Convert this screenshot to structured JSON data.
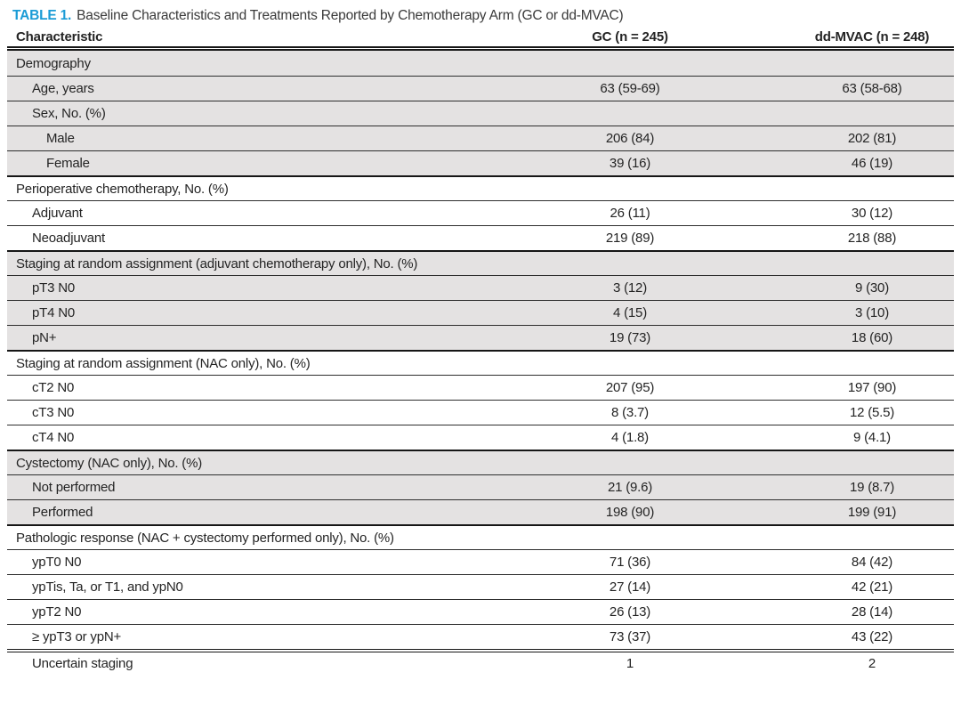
{
  "title": {
    "table_number": "TABLE 1.",
    "text": "Baseline Characteristics and Treatments Reported by Chemotherapy Arm (GC or dd-MVAC)"
  },
  "columns": {
    "characteristic": "Characteristic",
    "gc": "GC (n = 245)",
    "ddmvac": "dd-MVAC (n = 248)"
  },
  "colors": {
    "accent": "#1b9cd6",
    "shaded_row": "#e4e2e2",
    "rule": "#161616",
    "text": "#242424"
  },
  "rows": [
    {
      "label": "Demography",
      "indent": 0,
      "gc": "",
      "ddmvac": "",
      "shaded": true,
      "sep": "none"
    },
    {
      "label": "Age, years",
      "indent": 1,
      "gc": "63 (59-69)",
      "ddmvac": "63 (58-68)",
      "shaded": true,
      "sep": "row"
    },
    {
      "label": "Sex, No. (%)",
      "indent": 1,
      "gc": "",
      "ddmvac": "",
      "shaded": true,
      "sep": "row"
    },
    {
      "label": "Male",
      "indent": 2,
      "gc": "206 (84)",
      "ddmvac": "202 (81)",
      "shaded": true,
      "sep": "row"
    },
    {
      "label": "Female",
      "indent": 2,
      "gc": "39 (16)",
      "ddmvac": "46 (19)",
      "shaded": true,
      "sep": "row"
    },
    {
      "label": "Perioperative chemotherapy, No. (%)",
      "indent": 0,
      "gc": "",
      "ddmvac": "",
      "shaded": false,
      "sep": "block"
    },
    {
      "label": "Adjuvant",
      "indent": 1,
      "gc": "26 (11)",
      "ddmvac": "30 (12)",
      "shaded": false,
      "sep": "row"
    },
    {
      "label": "Neoadjuvant",
      "indent": 1,
      "gc": "219 (89)",
      "ddmvac": "218 (88)",
      "shaded": false,
      "sep": "row"
    },
    {
      "label": "Staging at random assignment (adjuvant chemotherapy only), No. (%)",
      "indent": 0,
      "gc": "",
      "ddmvac": "",
      "shaded": true,
      "sep": "block"
    },
    {
      "label": "pT3 N0",
      "indent": 1,
      "gc": "3 (12)",
      "ddmvac": "9 (30)",
      "shaded": true,
      "sep": "row"
    },
    {
      "label": "pT4 N0",
      "indent": 1,
      "gc": "4 (15)",
      "ddmvac": "3 (10)",
      "shaded": true,
      "sep": "row"
    },
    {
      "label": "pN+",
      "indent": 1,
      "gc": "19 (73)",
      "ddmvac": "18 (60)",
      "shaded": true,
      "sep": "row"
    },
    {
      "label": "Staging at random assignment (NAC only), No. (%)",
      "indent": 0,
      "gc": "",
      "ddmvac": "",
      "shaded": false,
      "sep": "block"
    },
    {
      "label": "cT2 N0",
      "indent": 1,
      "gc": "207 (95)",
      "ddmvac": "197 (90)",
      "shaded": false,
      "sep": "row"
    },
    {
      "label": "cT3 N0",
      "indent": 1,
      "gc": "8 (3.7)",
      "ddmvac": "12 (5.5)",
      "shaded": false,
      "sep": "row"
    },
    {
      "label": "cT4 N0",
      "indent": 1,
      "gc": "4 (1.8)",
      "ddmvac": "9 (4.1)",
      "shaded": false,
      "sep": "row"
    },
    {
      "label": "Cystectomy (NAC only), No. (%)",
      "indent": 0,
      "gc": "",
      "ddmvac": "",
      "shaded": true,
      "sep": "block"
    },
    {
      "label": "Not performed",
      "indent": 1,
      "gc": "21 (9.6)",
      "ddmvac": "19 (8.7)",
      "shaded": true,
      "sep": "row"
    },
    {
      "label": "Performed",
      "indent": 1,
      "gc": "198 (90)",
      "ddmvac": "199 (91)",
      "shaded": true,
      "sep": "row"
    },
    {
      "label": "Pathologic response (NAC + cystectomy performed only), No. (%)",
      "indent": 0,
      "gc": "",
      "ddmvac": "",
      "shaded": false,
      "sep": "block"
    },
    {
      "label": "ypT0 N0",
      "indent": 1,
      "gc": "71 (36)",
      "ddmvac": "84 (42)",
      "shaded": false,
      "sep": "row"
    },
    {
      "label": "ypTis, Ta, or T1, and ypN0",
      "indent": 1,
      "gc": "27 (14)",
      "ddmvac": "42 (21)",
      "shaded": false,
      "sep": "row"
    },
    {
      "label": "ypT2 N0",
      "indent": 1,
      "gc": "26 (13)",
      "ddmvac": "28 (14)",
      "shaded": false,
      "sep": "row"
    },
    {
      "label": "≥ ypT3 or ypN+",
      "indent": 1,
      "gc": "73 (37)",
      "ddmvac": "43 (22)",
      "shaded": false,
      "sep": "row"
    },
    {
      "label": "Uncertain staging",
      "indent": 1,
      "gc": "1",
      "ddmvac": "2",
      "shaded": false,
      "sep": "double"
    }
  ]
}
